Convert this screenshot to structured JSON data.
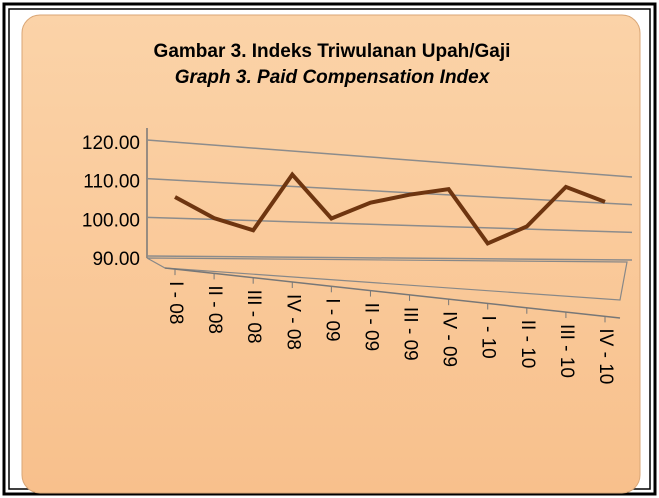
{
  "chart_data": {
    "type": "line",
    "title": "Gambar 3. Indeks Triwulanan Upah/Gaji",
    "subtitle": "Graph 3. Paid Compensation Index",
    "categories": [
      "I - 08",
      "II - 08",
      "III - 08",
      "IV - 08",
      "I - 09",
      "II - 09",
      "III - 09",
      "IV - 09",
      "I - 10",
      "II - 10",
      "III - 10",
      "IV - 10"
    ],
    "values": [
      105.5,
      100.3,
      97.3,
      113.3,
      101.3,
      106.4,
      109.4,
      111.8,
      95.0,
      100.9,
      115.0,
      110.6
    ],
    "color": "#6e3510",
    "ylim": [
      90,
      120
    ],
    "yticks": [
      {
        "value": 90,
        "label": "90.00"
      },
      {
        "value": 100,
        "label": "100.00"
      },
      {
        "value": 110,
        "label": "110.00"
      },
      {
        "value": 120,
        "label": "120.00"
      }
    ],
    "grid": true
  }
}
